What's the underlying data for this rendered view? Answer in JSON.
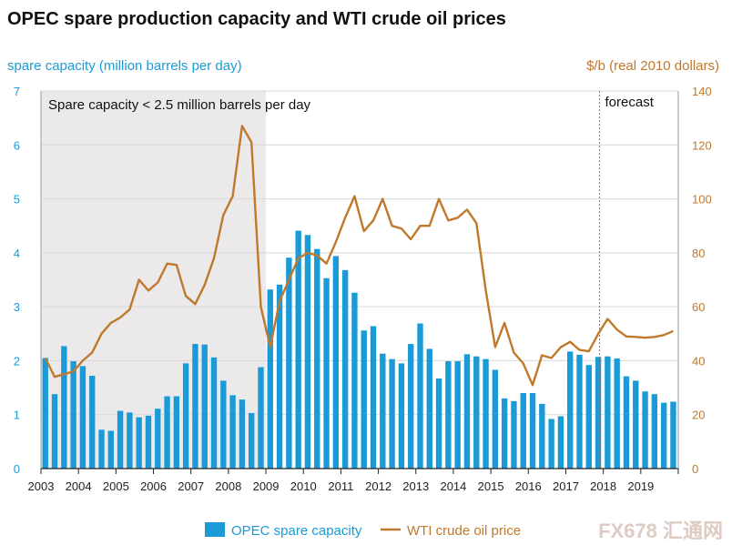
{
  "title": "OPEC spare production capacity and WTI crude oil prices",
  "left_axis_label": "spare capacity (million barrels per day)",
  "right_axis_label": "$/b (real 2010 dollars)",
  "shaded_region_label": "Spare capacity < 2.5 million barrels per day",
  "forecast_label": "forecast",
  "watermark": "FX678 汇通网",
  "colors": {
    "bars": "#1a9bd7",
    "line": "#c0782b",
    "shade": "#ebe9ea",
    "grid": "#d9d9d9"
  },
  "legend": {
    "bars": "OPEC spare capacity",
    "line": "WTI crude oil price"
  },
  "chart_data": {
    "type": "bar",
    "title": "OPEC spare production capacity and WTI crude oil prices",
    "x_ticks": [
      "2003",
      "2004",
      "2005",
      "2006",
      "2007",
      "2008",
      "2009",
      "2010",
      "2011",
      "2012",
      "2013",
      "2014",
      "2015",
      "2016",
      "2017",
      "2018",
      "2019"
    ],
    "x_start": 2003.0,
    "x_end": 2020.0,
    "y_left": {
      "label": "spare capacity (million barrels per day)",
      "ticks": [
        "0",
        "1",
        "2",
        "3",
        "4",
        "5",
        "6",
        "7"
      ],
      "ylim": [
        0,
        7
      ]
    },
    "y_right": {
      "label": "$/b (real 2010 dollars)",
      "ticks": [
        "0",
        "20",
        "40",
        "60",
        "80",
        "100",
        "120",
        "140"
      ],
      "ylim": [
        0,
        140
      ]
    },
    "shaded_region": {
      "x_from": 2003.0,
      "x_to": 2009.0,
      "label": "Spare capacity < 2.5 million barrels per day"
    },
    "forecast_start": 2017.9,
    "series": [
      {
        "name": "OPEC spare capacity",
        "kind": "bar",
        "axis": "left",
        "x_step": 0.25,
        "values": [
          2.05,
          1.38,
          2.27,
          1.99,
          1.9,
          1.72,
          0.72,
          0.7,
          1.07,
          1.04,
          0.95,
          0.98,
          1.11,
          1.34,
          1.34,
          1.95,
          2.31,
          2.3,
          2.06,
          1.63,
          1.36,
          1.28,
          1.03,
          1.88,
          3.32,
          3.41,
          3.91,
          4.41,
          4.33,
          4.07,
          3.53,
          3.94,
          3.68,
          3.26,
          2.56,
          2.64,
          2.13,
          2.03,
          1.95,
          2.31,
          2.69,
          2.22,
          1.67,
          1.99,
          1.99,
          2.12,
          2.08,
          2.03,
          1.83,
          1.3,
          1.25,
          1.4,
          1.4,
          1.2,
          0.92,
          0.97,
          2.17,
          2.11,
          1.92,
          2.07,
          2.08,
          2.04,
          1.71,
          1.63,
          1.43,
          1.38,
          1.22,
          1.24
        ]
      },
      {
        "name": "WTI crude oil price",
        "kind": "line",
        "axis": "right",
        "x_step": 0.25,
        "values": [
          41,
          34,
          35,
          36,
          40,
          43,
          50,
          54,
          56,
          59,
          70,
          66,
          69,
          76,
          75.5,
          64,
          61,
          68,
          78,
          94,
          101,
          127,
          121,
          60,
          45,
          62,
          70,
          78,
          80,
          79,
          76,
          84,
          93,
          101,
          88,
          92,
          100,
          90,
          89,
          85,
          90,
          90,
          100,
          92,
          93,
          96,
          91,
          66,
          45,
          54,
          43,
          39,
          31,
          42,
          41,
          45,
          47,
          44,
          43.5,
          50,
          55.5,
          51.5,
          49,
          48.8,
          48.5,
          48.8,
          49.5,
          51
        ]
      }
    ]
  }
}
